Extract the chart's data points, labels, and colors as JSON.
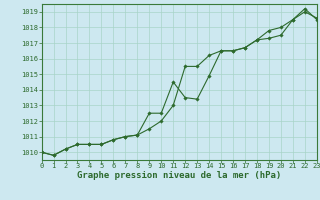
{
  "xlabel": "Graphe pression niveau de la mer (hPa)",
  "background_color": "#cde8f0",
  "grid_color": "#a8d4c8",
  "line_color": "#2d6a2d",
  "spine_color": "#3a7a3a",
  "x_hours": [
    0,
    1,
    2,
    3,
    4,
    5,
    6,
    7,
    8,
    9,
    10,
    11,
    12,
    13,
    14,
    15,
    16,
    17,
    18,
    19,
    20,
    21,
    22,
    23
  ],
  "line1": [
    1010.0,
    1009.8,
    1010.2,
    1010.5,
    1010.5,
    1010.5,
    1010.8,
    1011.0,
    1011.1,
    1011.5,
    1012.0,
    1013.0,
    1015.5,
    1015.5,
    1016.2,
    1016.5,
    1016.5,
    1016.7,
    1017.2,
    1017.8,
    1018.0,
    1018.5,
    1019.2,
    1018.5
  ],
  "line2": [
    1010.0,
    1009.8,
    1010.2,
    1010.5,
    1010.5,
    1010.5,
    1010.8,
    1011.0,
    1011.1,
    1012.5,
    1012.5,
    1014.5,
    1013.5,
    1013.4,
    1014.9,
    1016.5,
    1016.5,
    1016.7,
    1017.2,
    1017.3,
    1017.5,
    1018.5,
    1019.0,
    1018.6
  ],
  "ylim": [
    1009.5,
    1019.5
  ],
  "xlim": [
    0,
    23
  ],
  "yticks": [
    1010,
    1011,
    1012,
    1013,
    1014,
    1015,
    1016,
    1017,
    1018,
    1019
  ],
  "xticks": [
    0,
    1,
    2,
    3,
    4,
    5,
    6,
    7,
    8,
    9,
    10,
    11,
    12,
    13,
    14,
    15,
    16,
    17,
    18,
    19,
    20,
    21,
    22,
    23
  ],
  "tick_fontsize": 5.0,
  "label_fontsize": 6.5,
  "marker": "D",
  "markersize": 1.8,
  "linewidth": 0.8
}
